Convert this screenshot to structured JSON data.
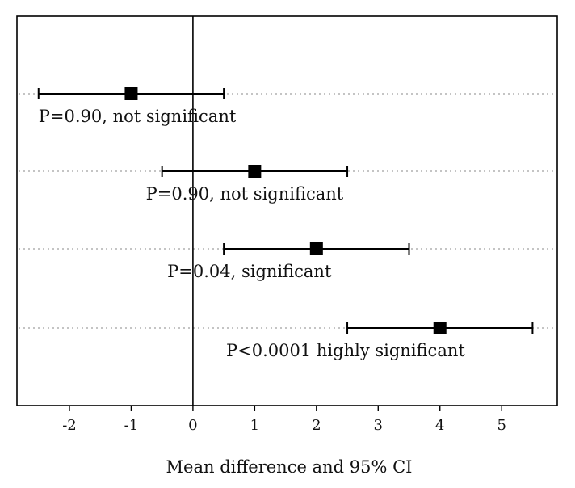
{
  "chart_data": {
    "type": "forest",
    "title": "",
    "xlabel": "Mean difference and 95% CI",
    "ylabel": "",
    "xlim": [
      -2.85,
      5.9
    ],
    "x_ticks": [
      -2,
      -1,
      0,
      1,
      2,
      3,
      4,
      5
    ],
    "x_tick_labels": [
      "-2",
      "-1",
      "0",
      "1",
      "2",
      "3",
      "4",
      "5"
    ],
    "reference_line_x": 0,
    "grid": "horizontal dotted lines at each row",
    "rows": [
      {
        "estimate": -1,
        "ci_low": -2.5,
        "ci_high": 0.5,
        "annotation": "P=0.90, not significant"
      },
      {
        "estimate": 1,
        "ci_low": -0.5,
        "ci_high": 2.5,
        "annotation": "P=0.90, not significant"
      },
      {
        "estimate": 2,
        "ci_low": 0.5,
        "ci_high": 3.5,
        "annotation": "P=0.04, significant"
      },
      {
        "estimate": 4,
        "ci_low": 2.5,
        "ci_high": 5.5,
        "annotation": "P<0.0001 highly significant"
      }
    ]
  },
  "colors": {
    "marker": "#000000",
    "line": "#000000",
    "grid": "#a0a0a0",
    "text": "#111111",
    "background": "#ffffff"
  }
}
